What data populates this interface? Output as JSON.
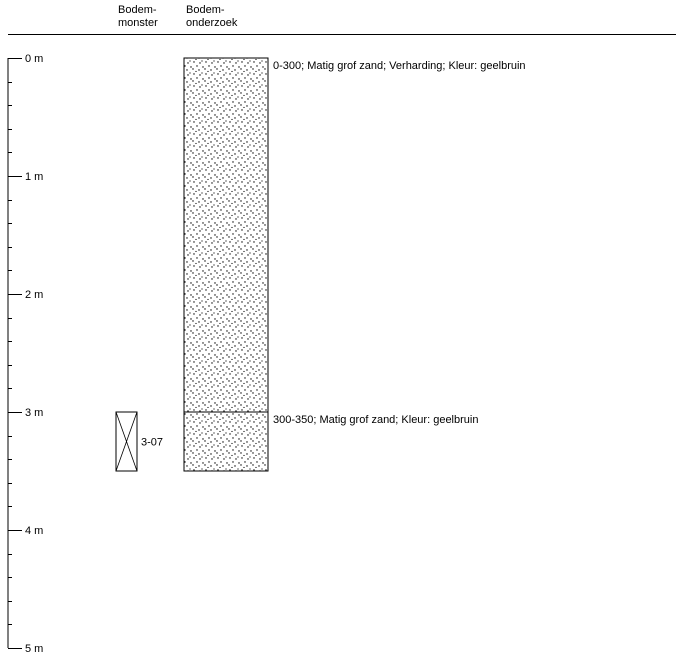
{
  "header": {
    "col_monster": [
      "Bodem-",
      "monster"
    ],
    "col_onderzoek": [
      "Bodem-",
      "onderzoek"
    ]
  },
  "depth_axis": {
    "unit": "m",
    "labels": [
      "0 m",
      "1 m",
      "2 m",
      "3 m",
      "4 m",
      "5 m"
    ],
    "max_m": 5,
    "minor_step_m": 0.2
  },
  "layers": [
    {
      "from_cm": 0,
      "to_cm": 300,
      "description": "0-300; Matig grof zand; Verharding; Kleur: geelbruin",
      "pattern": "sand-dots"
    },
    {
      "from_cm": 300,
      "to_cm": 350,
      "description": "300-350; Matig grof zand; Kleur: geelbruin",
      "pattern": "sand-dots"
    }
  ],
  "samples": [
    {
      "from_cm": 300,
      "to_cm": 350,
      "label": "3-07"
    }
  ]
}
